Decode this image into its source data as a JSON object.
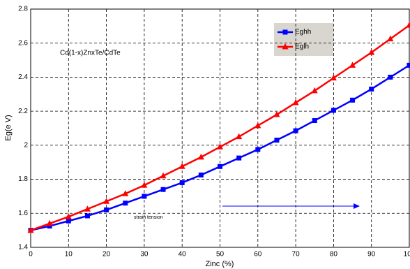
{
  "chart_data": {
    "type": "line",
    "x_label": "Zinc (%)",
    "y_label": "Eg(e V)",
    "annotations": [
      "Cd(1-x)ZnxTe/CdTe",
      "strain tension"
    ],
    "x": [
      0,
      5,
      10,
      15,
      20,
      25,
      30,
      35,
      40,
      45,
      50,
      55,
      60,
      65,
      70,
      75,
      80,
      85,
      90,
      95,
      100
    ],
    "series": [
      {
        "name": "Eghh",
        "color": "#0000ff",
        "marker": "square",
        "values": [
          1.5,
          1.525,
          1.555,
          1.585,
          1.62,
          1.66,
          1.7,
          1.74,
          1.78,
          1.825,
          1.875,
          1.925,
          1.975,
          2.03,
          2.085,
          2.145,
          2.205,
          2.265,
          2.33,
          2.4,
          2.47
        ]
      },
      {
        "name": "Eglh",
        "color": "#ff0000",
        "marker": "triangle",
        "values": [
          1.5,
          1.54,
          1.58,
          1.625,
          1.67,
          1.715,
          1.765,
          1.82,
          1.875,
          1.93,
          1.99,
          2.05,
          2.115,
          2.18,
          2.25,
          2.32,
          2.395,
          2.47,
          2.545,
          2.625,
          2.705
        ]
      }
    ],
    "xlim": [
      0,
      100
    ],
    "xticks": [
      0,
      10,
      20,
      30,
      40,
      50,
      60,
      70,
      80,
      90,
      100
    ],
    "ylim": [
      1.4,
      2.8
    ],
    "yticks": [
      1.4,
      1.6,
      1.8,
      2,
      2.2,
      2.4,
      2.6,
      2.8
    ],
    "grid": true
  }
}
